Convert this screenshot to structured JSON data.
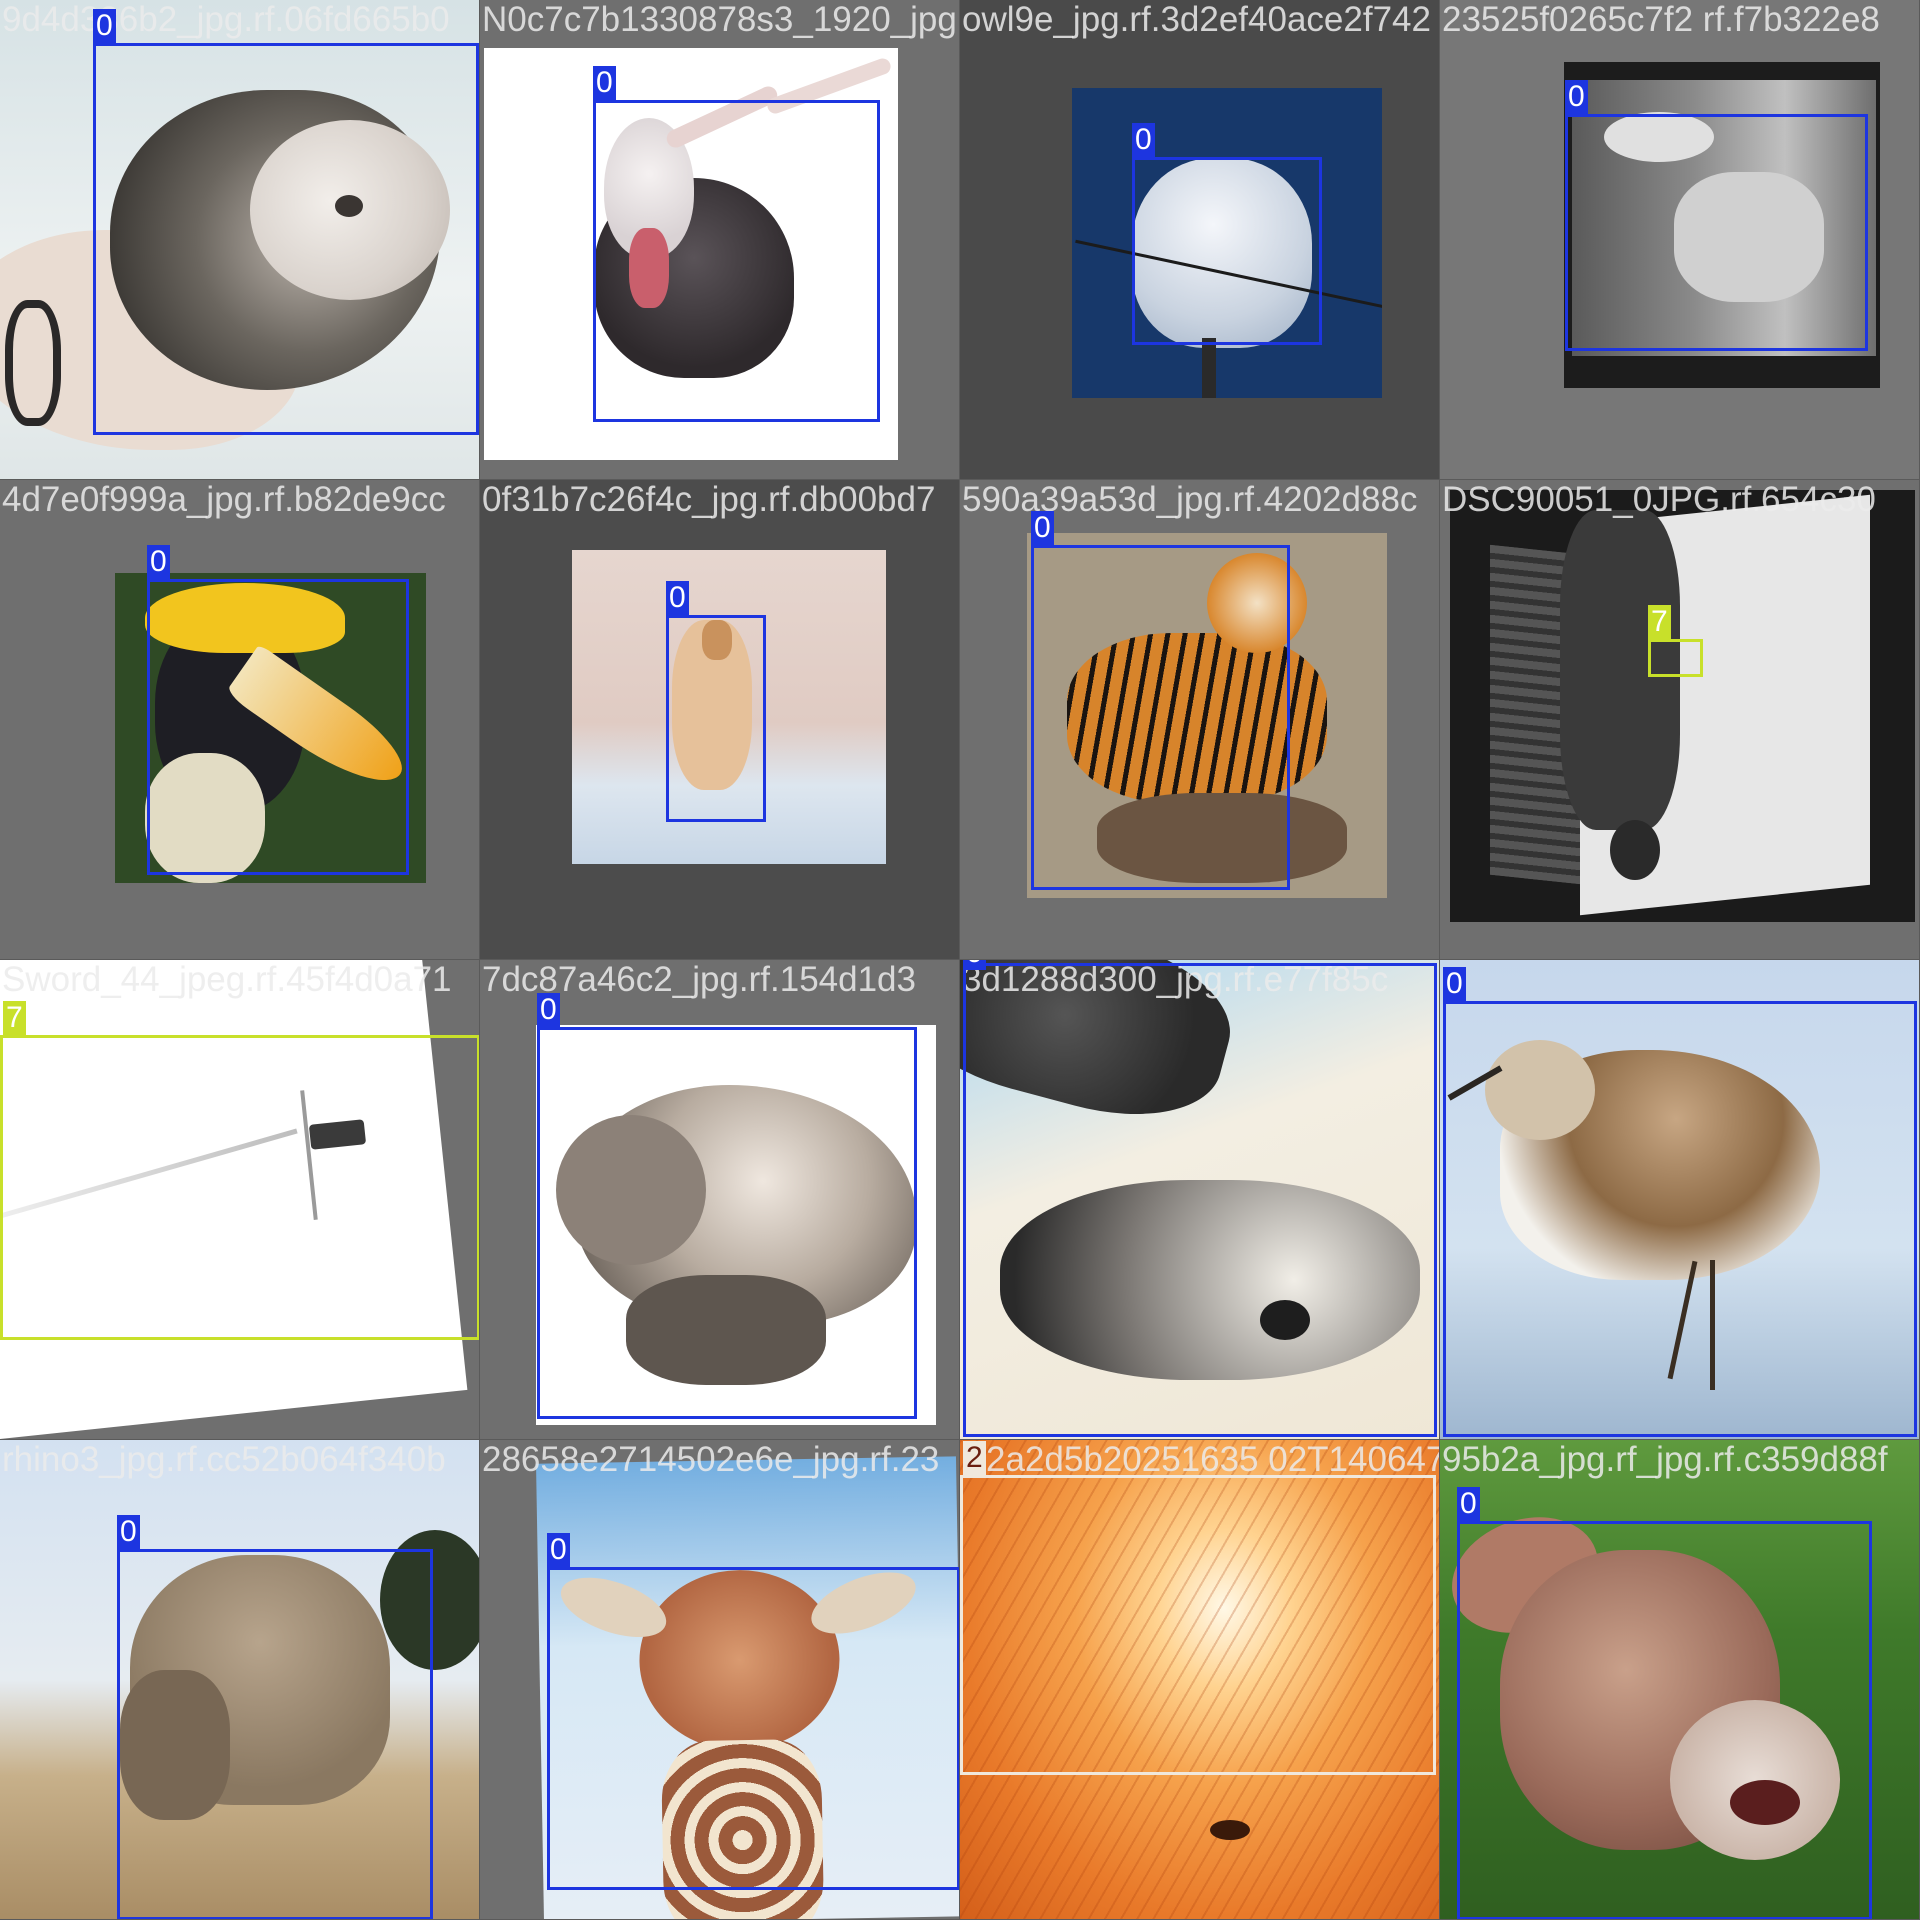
{
  "mosaic": {
    "tiles": [
      {
        "caption": "9d4d336b2_jpg.rf.06fd665b0",
        "label": "0",
        "color": "#1d35e0"
      },
      {
        "caption": "N0c7c7b1330878s3_1920_jpg",
        "label": "0",
        "color": "#1d35e0"
      },
      {
        "caption": "owl9e_jpg.rf.3d2ef40ace2f742",
        "label": "0",
        "color": "#1d35e0"
      },
      {
        "caption": "23525f0265c7f2 rf.f7b322e8",
        "label": "0",
        "color": "#1d35e0"
      },
      {
        "caption": "4d7e0f999a_jpg.rf.b82de9cc",
        "label": "0",
        "color": "#1d35e0"
      },
      {
        "caption": "0f31b7c26f4c_jpg.rf.db00bd7",
        "label": "0",
        "color": "#1d35e0"
      },
      {
        "caption": "590a39a53d_jpg.rf.4202d88c",
        "label": "0",
        "color": "#1d35e0"
      },
      {
        "caption": "DSC90051_0JPG.rf.654c30",
        "label": "7",
        "color": "#c8e02a"
      },
      {
        "caption": "Sword_44_jpeg.rf.45f4d0a71",
        "label": "7",
        "color": "#c8e02a"
      },
      {
        "caption": "7dc87a46c2_jpg.rf.154d1d3",
        "label": "0",
        "color": "#1d35e0"
      },
      {
        "caption": "3d1288d300_jpg.rf.e77f85c",
        "label": "0",
        "color": "#1d35e0"
      },
      {
        "caption": "",
        "label": "0",
        "color": "#1d35e0"
      },
      {
        "caption": "rhino3_jpg.rf.cc52b064f340b",
        "label": "0",
        "color": "#1d35e0"
      },
      {
        "caption": "28658e2714502e6e_jpg.rf.23",
        "label": "0",
        "color": "#1d35e0"
      },
      {
        "caption": "2a2d5b20251635 02T140647",
        "label": "2",
        "color": "#f0e8dc"
      },
      {
        "caption": "95b2a_jpg.rf_jpg.rf.c359d88f",
        "label": "0",
        "color": "#1d35e0"
      }
    ]
  }
}
